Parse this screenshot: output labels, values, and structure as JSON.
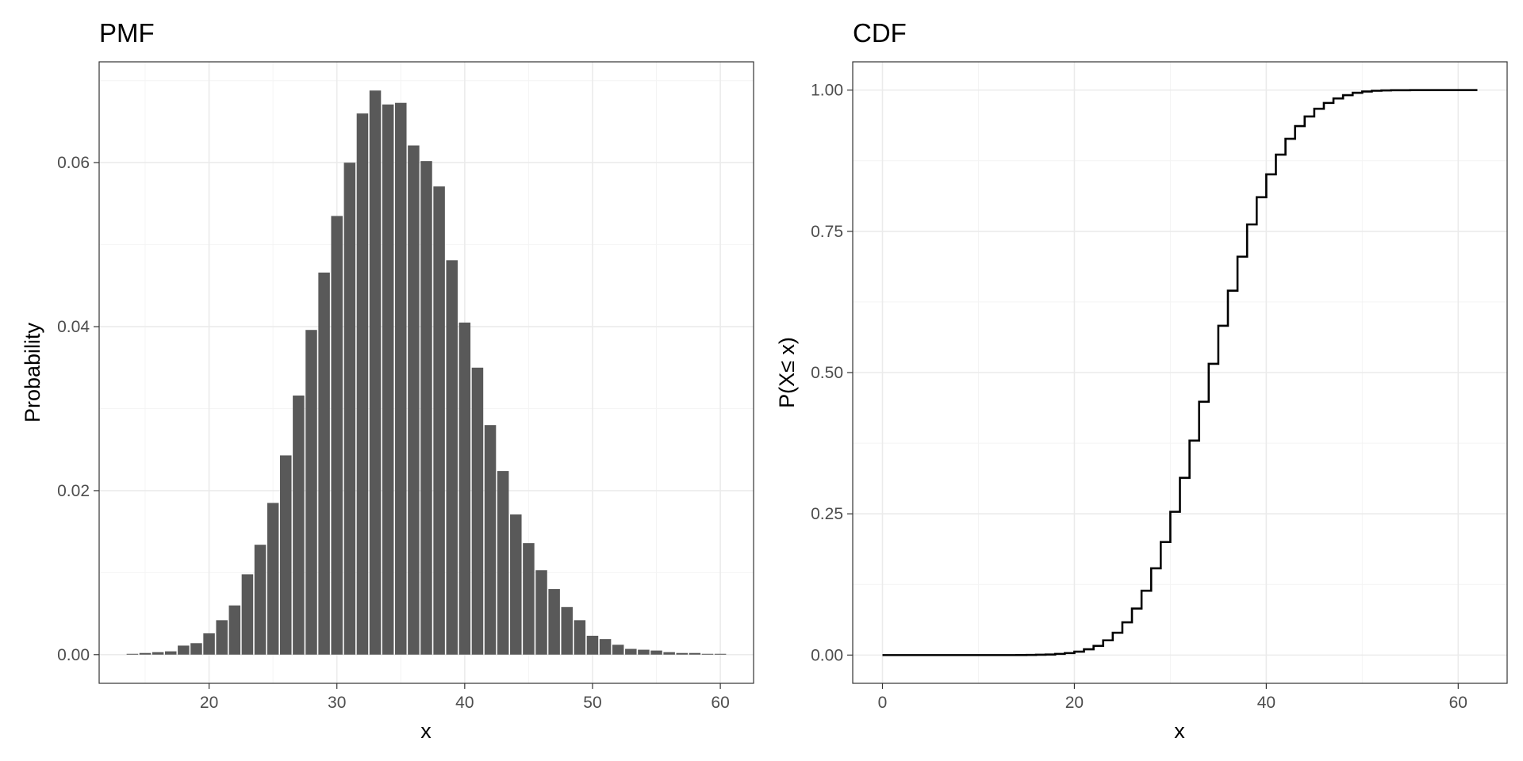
{
  "chart_data": [
    {
      "type": "bar",
      "title": "PMF",
      "xlabel": "x",
      "ylabel": "Probability",
      "xlim": [
        11.4,
        62.6
      ],
      "ylim": [
        -0.0035,
        0.0723
      ],
      "x_ticks": [
        20,
        30,
        40,
        50,
        60
      ],
      "x_tick_labels": [
        "20",
        "30",
        "40",
        "50",
        "60"
      ],
      "y_ticks": [
        0,
        0.02,
        0.04,
        0.06
      ],
      "y_tick_labels": [
        "0.00",
        "0.02",
        "0.04",
        "0.06"
      ],
      "grid": true,
      "x": [
        14,
        15,
        16,
        17,
        18,
        19,
        20,
        21,
        22,
        23,
        24,
        25,
        26,
        27,
        28,
        29,
        30,
        31,
        32,
        33,
        34,
        35,
        36,
        37,
        38,
        39,
        40,
        41,
        42,
        43,
        44,
        45,
        46,
        47,
        48,
        49,
        50,
        51,
        52,
        53,
        54,
        55,
        56,
        57,
        58,
        59,
        60
      ],
      "values": [
        0.0001,
        0.0002,
        0.0003,
        0.0004,
        0.0011,
        0.0014,
        0.0026,
        0.0042,
        0.006,
        0.0098,
        0.0134,
        0.0185,
        0.0243,
        0.0316,
        0.0396,
        0.0466,
        0.0535,
        0.06,
        0.066,
        0.0688,
        0.0671,
        0.0673,
        0.0621,
        0.0602,
        0.0571,
        0.0481,
        0.0405,
        0.035,
        0.028,
        0.0224,
        0.0171,
        0.0136,
        0.0103,
        0.008,
        0.0058,
        0.0042,
        0.0023,
        0.0019,
        0.0012,
        0.0007,
        0.0006,
        0.0005,
        0.0003,
        0.0002,
        0.0002,
        0.0001,
        0.0001
      ]
    },
    {
      "type": "line",
      "step": true,
      "title": "CDF",
      "xlabel": "x",
      "ylabel": "P(X≤ x)",
      "xlim": [
        -3.1,
        65.1
      ],
      "ylim": [
        -0.05,
        1.05
      ],
      "x_ticks": [
        0,
        20,
        40,
        60
      ],
      "x_tick_labels": [
        "0",
        "20",
        "40",
        "60"
      ],
      "y_ticks": [
        0,
        0.25,
        0.5,
        0.75,
        1.0
      ],
      "y_tick_labels": [
        "0.00",
        "0.25",
        "0.50",
        "0.75",
        "1.00"
      ],
      "grid": true,
      "x": [
        0,
        1,
        2,
        3,
        4,
        5,
        6,
        7,
        8,
        9,
        10,
        11,
        12,
        13,
        14,
        15,
        16,
        17,
        18,
        19,
        20,
        21,
        22,
        23,
        24,
        25,
        26,
        27,
        28,
        29,
        30,
        31,
        32,
        33,
        34,
        35,
        36,
        37,
        38,
        39,
        40,
        41,
        42,
        43,
        44,
        45,
        46,
        47,
        48,
        49,
        50,
        51,
        52,
        53,
        54,
        55,
        56,
        57,
        58,
        59,
        60,
        61,
        62
      ],
      "y": [
        0,
        0,
        0,
        0,
        0,
        0,
        0,
        0,
        0,
        0,
        0,
        0,
        0,
        0,
        0.0001,
        0.0003,
        0.0006,
        0.001,
        0.0021,
        0.0035,
        0.0061,
        0.0103,
        0.0163,
        0.0261,
        0.0395,
        0.058,
        0.0823,
        0.1139,
        0.1535,
        0.2001,
        0.2536,
        0.3136,
        0.3796,
        0.4484,
        0.5155,
        0.5828,
        0.6449,
        0.7051,
        0.7622,
        0.8103,
        0.8508,
        0.8858,
        0.9138,
        0.9362,
        0.9533,
        0.9669,
        0.9772,
        0.9852,
        0.991,
        0.9952,
        0.9975,
        0.9988,
        0.9994,
        0.9997,
        0.9998,
        0.9999,
        0.9999,
        1,
        1,
        1,
        1,
        1,
        1
      ]
    }
  ]
}
